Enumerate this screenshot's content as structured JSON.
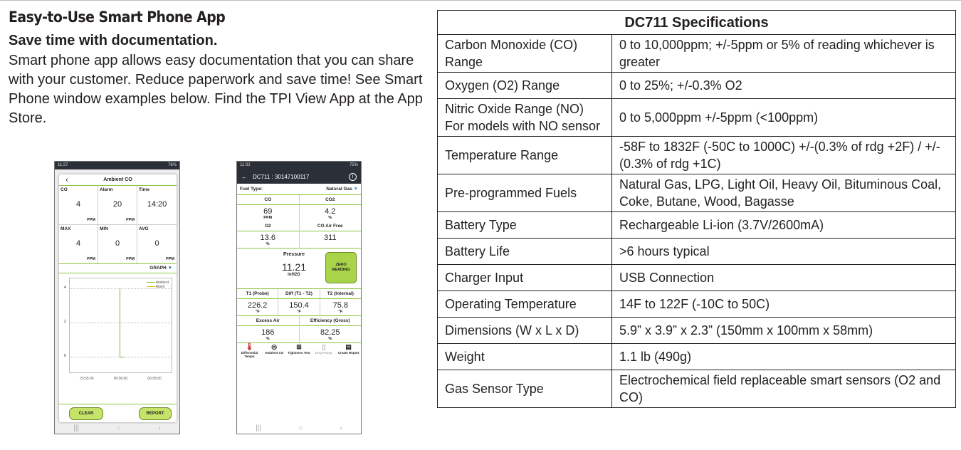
{
  "heading": "Easy-to-Use Smart Phone App",
  "subheading": "Save time with documentation.",
  "paragraph": "Smart phone app allows easy documentation that you can share with your customer. Reduce paperwork and save time! See Smart Phone window examples below. Find the TPI View App at the App Store.",
  "phone1": {
    "status_time": "11:27",
    "status_right": "76%",
    "title": "Ambient CO",
    "cells": [
      {
        "label": "CO",
        "value": "4",
        "unit": "PPM"
      },
      {
        "label": "Alarm",
        "value": "20",
        "unit": "PPM"
      },
      {
        "label": "Time",
        "value": "14:20",
        "unit": ""
      },
      {
        "label": "MAX",
        "value": "4",
        "unit": "PPM"
      },
      {
        "label": "MIN",
        "value": "0",
        "unit": "PPM"
      },
      {
        "label": "AVG",
        "value": "0",
        "unit": "PPM"
      }
    ],
    "graph_label": "GRAPH",
    "legend": [
      "Ambient",
      "Alarm"
    ],
    "y_ticks": [
      "4",
      "2",
      "0"
    ],
    "x_ticks": [
      "23:55:00",
      "00:00:00",
      "00:05:00"
    ],
    "clear": "CLEAR",
    "report": "REPORT"
  },
  "phone2": {
    "status_time": "11:32",
    "status_right": "75%",
    "title": "DC711 : 30147100117",
    "fuel_label": "Fuel Type:",
    "fuel_value": "Natural Gas",
    "co": {
      "label": "CO",
      "value": "69",
      "unit": "PPM"
    },
    "co2": {
      "label": "CO2",
      "value": "4.2",
      "unit": "%"
    },
    "o2": {
      "label": "O2",
      "value": "13.6",
      "unit": "%"
    },
    "coaf": {
      "label": "CO Air Free",
      "value": "311",
      "unit": ""
    },
    "pressure": {
      "label": "Pressure",
      "value": "11.21",
      "unit": "inH2O",
      "button": "ZERO READING"
    },
    "t1": {
      "label": "T1 (Probe)",
      "value": "226.2",
      "unit": "°F"
    },
    "diff": {
      "label": "Diff (T1 - T2)",
      "value": "150.4",
      "unit": "°F"
    },
    "t2": {
      "label": "T2 (Internal)",
      "value": "75.8",
      "unit": "°F"
    },
    "excess": {
      "label": "Excess Air",
      "value": "186",
      "unit": "%"
    },
    "eff": {
      "label": "Efficiency (Gross)",
      "value": "82.25",
      "unit": "%"
    },
    "tabs": [
      "Differential Temps",
      "Ambient CO",
      "Tightness Test",
      "Drop Pump",
      "Create Report"
    ]
  },
  "spec": {
    "title": "DC711 Specifications",
    "rows": [
      {
        "k": "Carbon Monoxide (CO) Range",
        "v": "0 to 10,000ppm; +/-5ppm or 5% of reading whichever is greater"
      },
      {
        "k": "Oxygen (O2) Range",
        "v": "0 to 25%; +/-0.3% O2"
      },
      {
        "k": "Nitric Oxide Range (NO) For models with NO sensor",
        "v": "0 to 5,000ppm +/-5ppm (<100ppm)"
      },
      {
        "k": "Temperature Range",
        "v": "-58F to 1832F (-50C to 1000C) +/-(0.3% of rdg +2F) / +/-(0.3% of rdg +1C)"
      },
      {
        "k": "Pre-programmed Fuels",
        "v": "Natural Gas, LPG, Light Oil, Heavy Oil, Bituminous Coal, Coke, Butane, Wood, Bagasse"
      },
      {
        "k": "Battery Type",
        "v": "Rechargeable Li-ion (3.7V/2600mA)"
      },
      {
        "k": "Battery Life",
        "v": ">6 hours typical"
      },
      {
        "k": "Charger Input",
        "v": "USB Connection"
      },
      {
        "k": "Operating Temperature",
        "v": "14F to 122F (-10C to 50C)"
      },
      {
        "k": "Dimensions (W x L x D)",
        "v": "5.9” x 3.9” x 2.3” (150mm x 100mm x 58mm)"
      },
      {
        "k": "Weight",
        "v": "1.1 lb (490g)"
      },
      {
        "k": "Gas Sensor Type",
        "v": "Electrochemical field replaceable smart sensors (O2 and CO)"
      }
    ]
  }
}
